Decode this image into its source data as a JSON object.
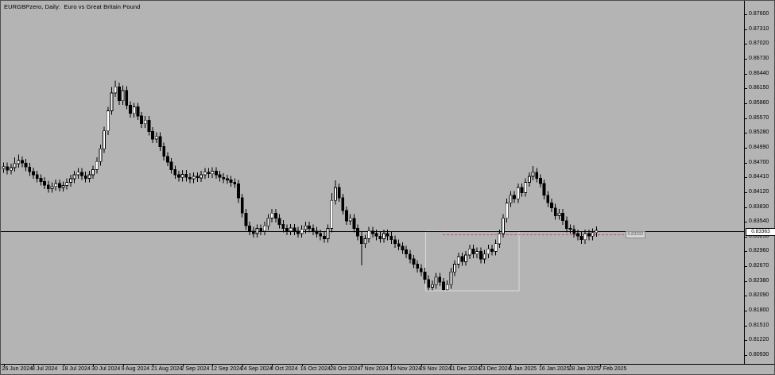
{
  "window": {
    "title": "EURGBPzero, Daily:  Euro vs Great Britain Pound"
  },
  "colors": {
    "background": "#b4b4b4",
    "bull_body": "#ffffff",
    "bear_body": "#000000",
    "candle_outline": "#000000",
    "bid_line": "#000000",
    "dashed_line": "#c94f6e",
    "rectangle_border": "#dcdcdc",
    "axis_line": "#000000",
    "axis_text": "#000000",
    "price_label_bg": "#ffffff"
  },
  "y_axis": {
    "labels": [
      "0.87600",
      "0.87310",
      "0.87020",
      "0.86730",
      "0.86440",
      "0.86150",
      "0.85860",
      "0.85570",
      "0.85280",
      "0.84990",
      "0.84700",
      "0.84410",
      "0.84120",
      "0.83830",
      "0.83540",
      "0.83250",
      "0.82960",
      "0.82670",
      "0.82380",
      "0.82090",
      "0.81800",
      "0.81510",
      "0.81220",
      "0.80930"
    ]
  },
  "x_axis": {
    "labels": [
      "26 Jun 2024",
      "8 Jul 2024",
      "18 Jul 2024",
      "30 Jul 2024",
      "9 Aug 2024",
      "21 Aug 2024",
      "2 Sep 2024",
      "12 Sep 2024",
      "24 Sep 2024",
      "4 Oct 2024",
      "16 Oct 2024",
      "28 Oct 2024",
      "7 Nov 2024",
      "19 Nov 2024",
      "29 Nov 2024",
      "11 Dec 2024",
      "23 Dec 2024",
      "6 Jan 2025",
      "16 Jan 2025",
      "28 Jan 2025",
      "7 Feb 2025"
    ],
    "candles_per_tick": 8
  },
  "chart_data": {
    "type": "candlestick",
    "title": "EURGBPzero, Daily:  Euro vs Great Britain Pound",
    "symbol": "EURGBP",
    "timeframe": "Daily",
    "start_date": "26 Jun 2024",
    "end_date": "7 Feb 2025",
    "ylim": [
      0.8093,
      0.876
    ],
    "y_tick_step": 0.0029,
    "grid": false,
    "candles": [
      [
        0.8458,
        0.847,
        0.845,
        0.8462
      ],
      [
        0.8462,
        0.847,
        0.8447,
        0.8455
      ],
      [
        0.8455,
        0.8468,
        0.8447,
        0.846
      ],
      [
        0.846,
        0.848,
        0.8452,
        0.8468
      ],
      [
        0.8468,
        0.8486,
        0.846,
        0.8474
      ],
      [
        0.8474,
        0.8482,
        0.8461,
        0.8469
      ],
      [
        0.8469,
        0.8477,
        0.8453,
        0.8461
      ],
      [
        0.8461,
        0.8469,
        0.8444,
        0.8452
      ],
      [
        0.8452,
        0.846,
        0.8438,
        0.8446
      ],
      [
        0.8446,
        0.8454,
        0.8431,
        0.8439
      ],
      [
        0.8439,
        0.8447,
        0.8425,
        0.8433
      ],
      [
        0.8433,
        0.8441,
        0.8418,
        0.8426
      ],
      [
        0.8426,
        0.8434,
        0.8411,
        0.8419
      ],
      [
        0.8419,
        0.8431,
        0.8411,
        0.8423
      ],
      [
        0.8423,
        0.8437,
        0.8415,
        0.8429
      ],
      [
        0.8429,
        0.8437,
        0.8413,
        0.8421
      ],
      [
        0.8421,
        0.8433,
        0.8413,
        0.8425
      ],
      [
        0.8425,
        0.8439,
        0.8417,
        0.8431
      ],
      [
        0.8431,
        0.8446,
        0.8423,
        0.8438
      ],
      [
        0.8438,
        0.8454,
        0.843,
        0.8446
      ],
      [
        0.8446,
        0.8459,
        0.8438,
        0.8451
      ],
      [
        0.8451,
        0.8459,
        0.8436,
        0.8444
      ],
      [
        0.8444,
        0.8452,
        0.8431,
        0.8439
      ],
      [
        0.8439,
        0.8454,
        0.8431,
        0.8446
      ],
      [
        0.8446,
        0.8464,
        0.8438,
        0.8456
      ],
      [
        0.8456,
        0.848,
        0.8448,
        0.8472
      ],
      [
        0.8472,
        0.8505,
        0.8464,
        0.8497
      ],
      [
        0.8497,
        0.854,
        0.8489,
        0.8532
      ],
      [
        0.8532,
        0.8579,
        0.8524,
        0.8571
      ],
      [
        0.8571,
        0.8618,
        0.8563,
        0.8606
      ],
      [
        0.8606,
        0.863,
        0.8598,
        0.8618
      ],
      [
        0.8618,
        0.8626,
        0.8583,
        0.8591
      ],
      [
        0.8591,
        0.8621,
        0.8583,
        0.8611
      ],
      [
        0.8611,
        0.8619,
        0.8574,
        0.8582
      ],
      [
        0.8582,
        0.859,
        0.8558,
        0.8566
      ],
      [
        0.8566,
        0.8587,
        0.8558,
        0.8579
      ],
      [
        0.8579,
        0.8587,
        0.8553,
        0.8561
      ],
      [
        0.8561,
        0.8569,
        0.8538,
        0.8546
      ],
      [
        0.8546,
        0.8561,
        0.8538,
        0.8553
      ],
      [
        0.8553,
        0.8561,
        0.8523,
        0.8531
      ],
      [
        0.8531,
        0.8539,
        0.8508,
        0.8516
      ],
      [
        0.8516,
        0.8529,
        0.8508,
        0.8521
      ],
      [
        0.8521,
        0.8529,
        0.8493,
        0.8501
      ],
      [
        0.8501,
        0.8509,
        0.8474,
        0.8482
      ],
      [
        0.8482,
        0.849,
        0.8463,
        0.8471
      ],
      [
        0.8471,
        0.8479,
        0.8448,
        0.8456
      ],
      [
        0.8456,
        0.8464,
        0.8438,
        0.8446
      ],
      [
        0.8446,
        0.8454,
        0.8433,
        0.8441
      ],
      [
        0.8441,
        0.8455,
        0.8433,
        0.8447
      ],
      [
        0.8447,
        0.8455,
        0.8433,
        0.8441
      ],
      [
        0.8441,
        0.8449,
        0.843,
        0.8438
      ],
      [
        0.8438,
        0.8451,
        0.843,
        0.8443
      ],
      [
        0.8443,
        0.8451,
        0.8432,
        0.844
      ],
      [
        0.844,
        0.8454,
        0.8432,
        0.8446
      ],
      [
        0.8446,
        0.8459,
        0.8438,
        0.8451
      ],
      [
        0.8451,
        0.8459,
        0.844,
        0.8448
      ],
      [
        0.8448,
        0.8461,
        0.844,
        0.8453
      ],
      [
        0.8453,
        0.8461,
        0.8438,
        0.8446
      ],
      [
        0.8446,
        0.8454,
        0.8433,
        0.8441
      ],
      [
        0.8441,
        0.8449,
        0.843,
        0.8438
      ],
      [
        0.8438,
        0.8446,
        0.8428,
        0.8436
      ],
      [
        0.8436,
        0.8444,
        0.8423,
        0.8431
      ],
      [
        0.8431,
        0.8439,
        0.842,
        0.8428
      ],
      [
        0.8428,
        0.8436,
        0.8391,
        0.8401
      ],
      [
        0.8401,
        0.8409,
        0.8363,
        0.8371
      ],
      [
        0.8371,
        0.8379,
        0.8338,
        0.8346
      ],
      [
        0.8346,
        0.8354,
        0.8328,
        0.8336
      ],
      [
        0.8336,
        0.8344,
        0.8323,
        0.8331
      ],
      [
        0.8331,
        0.8349,
        0.8323,
        0.8341
      ],
      [
        0.8341,
        0.8349,
        0.8328,
        0.8336
      ],
      [
        0.8336,
        0.8354,
        0.8328,
        0.8346
      ],
      [
        0.8346,
        0.8369,
        0.8338,
        0.8361
      ],
      [
        0.8361,
        0.8379,
        0.8353,
        0.8371
      ],
      [
        0.8371,
        0.8379,
        0.8353,
        0.8361
      ],
      [
        0.8361,
        0.8369,
        0.8341,
        0.8349
      ],
      [
        0.8349,
        0.8357,
        0.8333,
        0.8341
      ],
      [
        0.8341,
        0.8349,
        0.8328,
        0.8336
      ],
      [
        0.8336,
        0.835,
        0.8328,
        0.8342
      ],
      [
        0.8342,
        0.835,
        0.8328,
        0.8336
      ],
      [
        0.8336,
        0.8344,
        0.8323,
        0.8331
      ],
      [
        0.8331,
        0.8347,
        0.8323,
        0.8339
      ],
      [
        0.8339,
        0.8354,
        0.8331,
        0.8346
      ],
      [
        0.8346,
        0.8354,
        0.8333,
        0.8341
      ],
      [
        0.8341,
        0.8349,
        0.8328,
        0.8336
      ],
      [
        0.8336,
        0.8344,
        0.8323,
        0.8331
      ],
      [
        0.8331,
        0.8339,
        0.8318,
        0.8326
      ],
      [
        0.8326,
        0.8334,
        0.8313,
        0.8321
      ],
      [
        0.8321,
        0.8349,
        0.8313,
        0.8341
      ],
      [
        0.8341,
        0.841,
        0.8333,
        0.8396
      ],
      [
        0.8396,
        0.8435,
        0.8388,
        0.8421
      ],
      [
        0.8421,
        0.8429,
        0.8393,
        0.8401
      ],
      [
        0.8401,
        0.8409,
        0.8368,
        0.8376
      ],
      [
        0.8376,
        0.8384,
        0.8348,
        0.8356
      ],
      [
        0.8356,
        0.8369,
        0.8348,
        0.8361
      ],
      [
        0.8361,
        0.8369,
        0.8333,
        0.8341
      ],
      [
        0.8341,
        0.8349,
        0.8318,
        0.8326
      ],
      [
        0.8326,
        0.8334,
        0.8269,
        0.8311
      ],
      [
        0.8311,
        0.8329,
        0.8303,
        0.8321
      ],
      [
        0.8321,
        0.8344,
        0.8313,
        0.8336
      ],
      [
        0.8336,
        0.8344,
        0.8323,
        0.8331
      ],
      [
        0.8331,
        0.8339,
        0.8318,
        0.8326
      ],
      [
        0.8326,
        0.8334,
        0.8313,
        0.8321
      ],
      [
        0.8321,
        0.8339,
        0.8313,
        0.8331
      ],
      [
        0.8331,
        0.8339,
        0.8318,
        0.8326
      ],
      [
        0.8326,
        0.8334,
        0.8311,
        0.8319
      ],
      [
        0.8319,
        0.8327,
        0.8303,
        0.8311
      ],
      [
        0.8311,
        0.8319,
        0.8298,
        0.8306
      ],
      [
        0.8306,
        0.8314,
        0.8291,
        0.8299
      ],
      [
        0.8299,
        0.8307,
        0.8283,
        0.8291
      ],
      [
        0.8291,
        0.8299,
        0.8273,
        0.8281
      ],
      [
        0.8281,
        0.8289,
        0.8263,
        0.8271
      ],
      [
        0.8271,
        0.8279,
        0.8255,
        0.8263
      ],
      [
        0.8263,
        0.8271,
        0.8248,
        0.8256
      ],
      [
        0.8256,
        0.8264,
        0.8233,
        0.8241
      ],
      [
        0.8241,
        0.8249,
        0.822,
        0.8226
      ],
      [
        0.8226,
        0.8239,
        0.822,
        0.8231
      ],
      [
        0.8231,
        0.8254,
        0.8223,
        0.8246
      ],
      [
        0.8246,
        0.8254,
        0.8228,
        0.8236
      ],
      [
        0.8236,
        0.8244,
        0.822,
        0.8221
      ],
      [
        0.8221,
        0.8239,
        0.822,
        0.8231
      ],
      [
        0.8231,
        0.8264,
        0.8223,
        0.8256
      ],
      [
        0.8256,
        0.8279,
        0.8248,
        0.8271
      ],
      [
        0.8271,
        0.8294,
        0.8263,
        0.8286
      ],
      [
        0.8286,
        0.8294,
        0.8268,
        0.8276
      ],
      [
        0.8276,
        0.8297,
        0.8268,
        0.8289
      ],
      [
        0.8289,
        0.8309,
        0.8281,
        0.8301
      ],
      [
        0.8301,
        0.8309,
        0.8283,
        0.8291
      ],
      [
        0.8291,
        0.8304,
        0.8283,
        0.8296
      ],
      [
        0.8296,
        0.8304,
        0.8273,
        0.8281
      ],
      [
        0.8281,
        0.8299,
        0.8273,
        0.8291
      ],
      [
        0.8291,
        0.8309,
        0.8283,
        0.8301
      ],
      [
        0.8301,
        0.8309,
        0.8288,
        0.8296
      ],
      [
        0.8296,
        0.8319,
        0.8288,
        0.8311
      ],
      [
        0.8311,
        0.8339,
        0.8303,
        0.8331
      ],
      [
        0.8331,
        0.8369,
        0.8323,
        0.8361
      ],
      [
        0.8361,
        0.8399,
        0.8353,
        0.8391
      ],
      [
        0.8391,
        0.8414,
        0.8383,
        0.8406
      ],
      [
        0.8406,
        0.8414,
        0.8391,
        0.8399
      ],
      [
        0.8399,
        0.8429,
        0.8391,
        0.8421
      ],
      [
        0.8421,
        0.8429,
        0.8403,
        0.8411
      ],
      [
        0.8411,
        0.8439,
        0.8403,
        0.8431
      ],
      [
        0.8431,
        0.8451,
        0.8423,
        0.8443
      ],
      [
        0.8443,
        0.8463,
        0.8435,
        0.8451
      ],
      [
        0.8451,
        0.8459,
        0.8431,
        0.8439
      ],
      [
        0.8439,
        0.8447,
        0.8421,
        0.8429
      ],
      [
        0.8429,
        0.8437,
        0.8398,
        0.8406
      ],
      [
        0.8406,
        0.8414,
        0.8383,
        0.8391
      ],
      [
        0.8391,
        0.8399,
        0.8373,
        0.8381
      ],
      [
        0.8381,
        0.8389,
        0.8358,
        0.8366
      ],
      [
        0.8366,
        0.8379,
        0.8358,
        0.8371
      ],
      [
        0.8371,
        0.8379,
        0.8348,
        0.8356
      ],
      [
        0.8356,
        0.8364,
        0.8333,
        0.8341
      ],
      [
        0.8341,
        0.8349,
        0.8331,
        0.8339
      ],
      [
        0.8339,
        0.8347,
        0.8323,
        0.8331
      ],
      [
        0.8331,
        0.8339,
        0.8318,
        0.8326
      ],
      [
        0.8326,
        0.8334,
        0.8311,
        0.8319
      ],
      [
        0.8319,
        0.8339,
        0.8311,
        0.8331
      ],
      [
        0.8331,
        0.8339,
        0.8318,
        0.8326
      ],
      [
        0.8326,
        0.8341,
        0.8318,
        0.8333
      ],
      [
        0.8333,
        0.8345,
        0.8325,
        0.8337
      ]
    ],
    "overlays": {
      "bid_line_price": 0.83363,
      "bid_line_label": "0.83363",
      "dashed_line_price": 0.83292,
      "dashed_line_label": "0.83292",
      "rectangle": {
        "index_from": 113.2,
        "index_to": 138.2,
        "price_top": 0.8336,
        "price_bottom": 0.8219
      }
    }
  }
}
